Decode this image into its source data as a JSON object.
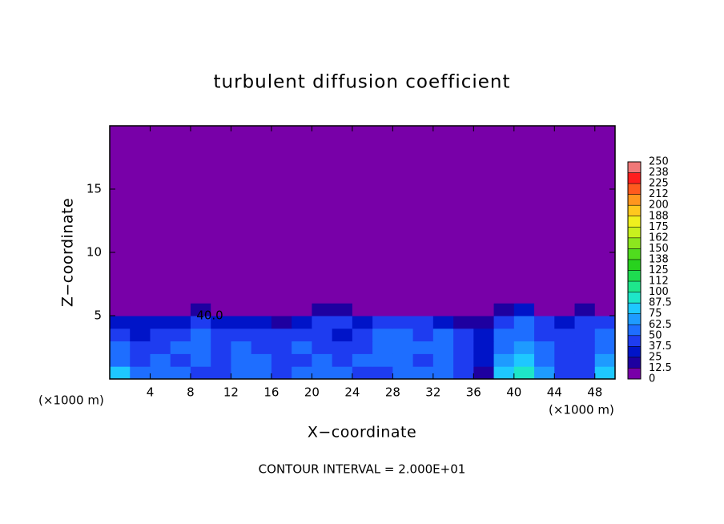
{
  "chart_data": {
    "type": "heatmap",
    "title": "turbulent diffusion coefficient",
    "x_label": "X−coordinate",
    "y_label": "Z−coordinate",
    "x_unit": "(×1000 m)",
    "annotation": "CONTOUR INTERVAL = 2.000E+01",
    "contour_label": "40.0",
    "xlim": [
      0,
      50
    ],
    "ylim": [
      0,
      20
    ],
    "xticks": [
      4,
      8,
      12,
      16,
      20,
      24,
      28,
      32,
      36,
      40,
      44,
      48
    ],
    "yticks": [
      5,
      10,
      15
    ],
    "x_edges": [
      0,
      2,
      4,
      6,
      8,
      10,
      12,
      14,
      16,
      18,
      20,
      22,
      24,
      26,
      28,
      30,
      32,
      34,
      36,
      38,
      40,
      42,
      44,
      46,
      48,
      50
    ],
    "z_edges": [
      0,
      1,
      2,
      3,
      4,
      5,
      6,
      20
    ],
    "z": [
      [
        85,
        55,
        60,
        50,
        45,
        40,
        60,
        55,
        45,
        50,
        55,
        50,
        45,
        40,
        50,
        55,
        55,
        45,
        20,
        75,
        90,
        70,
        45,
        40,
        85
      ],
      [
        60,
        45,
        55,
        40,
        55,
        45,
        50,
        55,
        40,
        45,
        50,
        40,
        50,
        60,
        55,
        45,
        50,
        40,
        30,
        70,
        80,
        55,
        40,
        45,
        70
      ],
      [
        55,
        40,
        45,
        50,
        60,
        45,
        55,
        45,
        40,
        50,
        45,
        40,
        45,
        55,
        60,
        50,
        55,
        45,
        25,
        60,
        65,
        50,
        40,
        45,
        60
      ],
      [
        45,
        35,
        40,
        45,
        55,
        40,
        45,
        40,
        40,
        45,
        40,
        35,
        40,
        50,
        55,
        45,
        50,
        40,
        30,
        55,
        60,
        45,
        40,
        40,
        55
      ],
      [
        35,
        25,
        30,
        35,
        45,
        30,
        35,
        30,
        20,
        35,
        40,
        40,
        35,
        40,
        45,
        40,
        35,
        20,
        15,
        45,
        50,
        40,
        35,
        40,
        45
      ],
      [
        5,
        0,
        5,
        10,
        15,
        10,
        5,
        0,
        0,
        10,
        15,
        20,
        10,
        5,
        10,
        10,
        5,
        0,
        0,
        20,
        25,
        5,
        10,
        15,
        10
      ],
      [
        0,
        0,
        0,
        0,
        0,
        0,
        0,
        0,
        0,
        0,
        0,
        0,
        0,
        0,
        0,
        0,
        0,
        0,
        0,
        0,
        0,
        0,
        0,
        0,
        0
      ]
    ],
    "colorbar_ticks": [
      0,
      12.5,
      25,
      37.5,
      50,
      62.5,
      75,
      87.5,
      100,
      {
        "value": 112.5,
        "label": "112"
      },
      125,
      {
        "value": 137.5,
        "label": "138"
      },
      150,
      {
        "value": 162.5,
        "label": "162"
      },
      175,
      {
        "value": 187.5,
        "label": "188"
      },
      200,
      {
        "value": 212.5,
        "label": "212"
      },
      225,
      {
        "value": 237.5,
        "label": "238"
      },
      250
    ],
    "colors": [
      "#7800a8",
      "#1e00a0",
      "#0014c8",
      "#1e3cf0",
      "#1e6eff",
      "#1e9bff",
      "#1ec8ff",
      "#1ee6c8",
      "#1ee68c",
      "#1edc50",
      "#28d21e",
      "#50dc1e",
      "#8ce61e",
      "#c8f01e",
      "#f0f01e",
      "#ffc81e",
      "#ff961e",
      "#ff5a1e",
      "#ff1e1e",
      "#f07878"
    ]
  }
}
